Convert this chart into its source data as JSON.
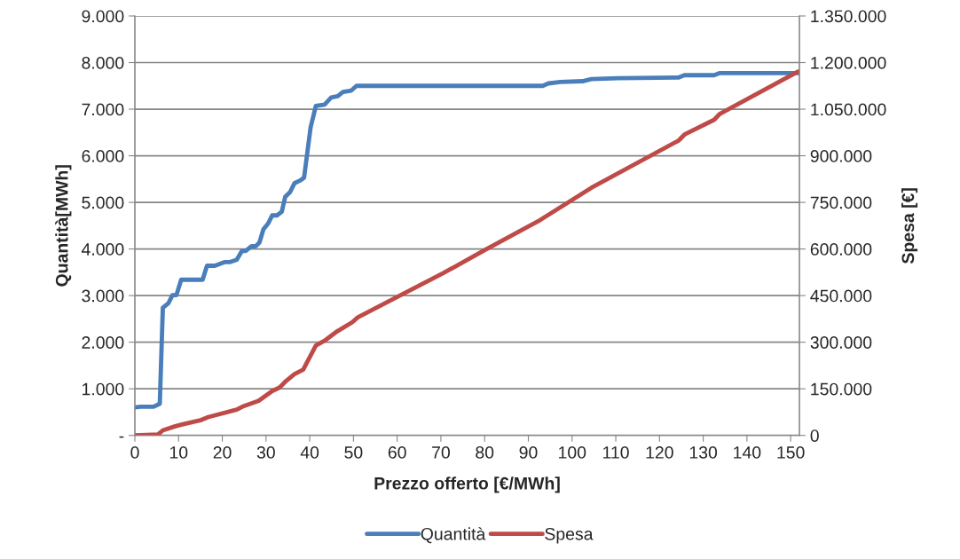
{
  "chart_data": {
    "type": "line",
    "xlabel": "Prezzo offerto [€/MWh]",
    "ylabel": "Quantità[MWh]",
    "y2label": "Spesa [€]",
    "xlim": [
      0,
      152
    ],
    "xticks": [
      0,
      10,
      20,
      30,
      40,
      50,
      60,
      70,
      80,
      90,
      100,
      110,
      120,
      130,
      140,
      150
    ],
    "ylim": [
      0,
      9000
    ],
    "yticks": [
      {
        "value": 0,
        "label": "-"
      },
      {
        "value": 1000,
        "label": "1.000"
      },
      {
        "value": 2000,
        "label": "2.000"
      },
      {
        "value": 3000,
        "label": "3.000"
      },
      {
        "value": 4000,
        "label": "4.000"
      },
      {
        "value": 5000,
        "label": "5.000"
      },
      {
        "value": 6000,
        "label": "6.000"
      },
      {
        "value": 7000,
        "label": "7.000"
      },
      {
        "value": 8000,
        "label": "8.000"
      },
      {
        "value": 9000,
        "label": "9.000"
      }
    ],
    "y2lim": [
      0,
      1350000
    ],
    "y2ticks": [
      0,
      {
        "value": 150000,
        "label": "150.000"
      },
      {
        "value": 300000,
        "label": "300.000"
      },
      {
        "value": 450000,
        "label": "450.000"
      },
      {
        "value": 600000,
        "label": "600.000"
      },
      {
        "value": 750000,
        "label": "750.000"
      },
      {
        "value": 900000,
        "label": "900.000"
      },
      {
        "value": 1050000,
        "label": "1.050.000"
      },
      {
        "value": 1200000,
        "label": "1.200.000"
      },
      {
        "value": 1350000,
        "label": "1.350.000"
      }
    ],
    "grid": "y",
    "legend": "bottom",
    "marker": "none",
    "line_style": "solid",
    "series": [
      {
        "name": "Quantità",
        "color": "#4a7ebb",
        "x": [
          0,
          1.3,
          4.3,
          5.7,
          6.4,
          7.7,
          8.6,
          9.5,
          10.6,
          15.5,
          16.5,
          18.3,
          20.6,
          21.8,
          23.3,
          24.5,
          25.4,
          26.7,
          27.7,
          28.5,
          29.4,
          30.5,
          31.4,
          32.5,
          33.6,
          34.4,
          35.5,
          36.5,
          37.8,
          38.7,
          40.2,
          41.4,
          43.4,
          44.9,
          46.4,
          47.6,
          49.5,
          50.7,
          93.3,
          94.6,
          97.3,
          102.4,
          104.4,
          110.5,
          124.4,
          125.7,
          132.5,
          133.8,
          152
        ],
        "values": [
          600,
          615,
          615,
          680,
          2740,
          2840,
          3010,
          3010,
          3340,
          3340,
          3640,
          3640,
          3720,
          3720,
          3770,
          3960,
          3960,
          4060,
          4060,
          4140,
          4420,
          4550,
          4720,
          4720,
          4800,
          5120,
          5220,
          5410,
          5470,
          5530,
          6610,
          7070,
          7100,
          7250,
          7280,
          7370,
          7400,
          7500,
          7500,
          7553,
          7585,
          7600,
          7645,
          7665,
          7680,
          7730,
          7730,
          7775,
          7775
        ]
      },
      {
        "name": "Spesa",
        "color": "#be4b48",
        "axis": "y2",
        "x": [
          0,
          5.3,
          6.4,
          9.1,
          10.8,
          15.2,
          16.8,
          23.3,
          24.6,
          28.3,
          31.4,
          33.1,
          34.6,
          36.5,
          38.5,
          41.4,
          43.6,
          46.3,
          49.7,
          51,
          70.6,
          80.1,
          92.6,
          104.4,
          124.4,
          125.7,
          132.5,
          133.8,
          151.7
        ],
        "values": [
          0,
          3000,
          16300,
          28600,
          35400,
          49700,
          59100,
          82800,
          92500,
          111400,
          142800,
          154200,
          175300,
          197100,
          211400,
          289600,
          306700,
          335300,
          363900,
          380000,
          522700,
          597000,
          692300,
          796800,
          949300,
          968200,
          1015900,
          1035000,
          1171000
        ]
      }
    ]
  }
}
